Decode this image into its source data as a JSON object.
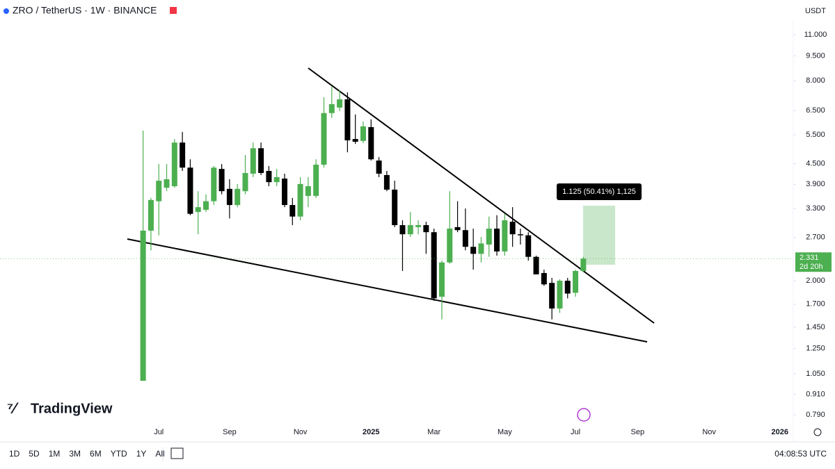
{
  "header": {
    "symbol": "ZRO / TetherUS · 1W · BINANCE",
    "currency": "USDT"
  },
  "brand": "TradingView",
  "chart_data": {
    "type": "candlestick",
    "log_scale": true,
    "up_color": "#4caf50",
    "down_color": "#000000",
    "open": [
      1.0,
      2.83,
      3.47,
      3.81,
      3.85,
      5.21,
      4.38,
      3.22,
      3.27,
      3.47,
      4.34,
      3.78,
      3.38,
      3.72,
      4.2,
      5.01,
      4.28,
      3.96,
      4.06,
      3.38,
      3.12,
      3.6,
      3.6,
      4.47,
      6.39,
      6.64,
      7.03,
      5.34,
      5.27,
      5.8,
      4.6,
      4.16,
      3.76,
      2.94,
      2.76,
      2.9,
      2.94,
      2.8,
      1.79,
      2.27,
      2.9,
      2.84,
      2.53,
      2.41,
      2.57,
      2.87,
      2.45,
      3.01,
      2.76,
      2.74,
      2.36,
      2.11,
      1.97,
      1.65,
      2.0,
      1.84,
      2.14
    ],
    "high": [
      5.66,
      3.55,
      4.49,
      4.49,
      5.34,
      5.61,
      4.64,
      3.72,
      3.64,
      4.43,
      4.49,
      4.04,
      3.91,
      4.78,
      5.21,
      5.21,
      4.43,
      4.34,
      4.2,
      3.55,
      4.1,
      4.1,
      4.64,
      7.13,
      7.67,
      7.49,
      7.38,
      6.33,
      6.03,
      6.12,
      4.71,
      4.28,
      4.0,
      3.04,
      3.22,
      3.04,
      3.01,
      2.87,
      2.3,
      3.72,
      3.47,
      3.3,
      2.87,
      2.71,
      3.12,
      3.15,
      3.18,
      3.33,
      2.87,
      2.8,
      2.38,
      2.16,
      2.04,
      2.02,
      2.04,
      2.16,
      2.36
    ],
    "low": [
      1.0,
      2.47,
      2.74,
      3.72,
      3.81,
      4.28,
      3.15,
      2.76,
      3.22,
      3.38,
      3.64,
      3.08,
      3.33,
      3.64,
      4.1,
      4.16,
      3.85,
      3.85,
      3.33,
      2.94,
      3.04,
      3.33,
      3.55,
      4.38,
      6.18,
      6.48,
      4.87,
      5.16,
      5.19,
      4.6,
      4.1,
      3.72,
      2.9,
      2.14,
      2.71,
      2.76,
      2.41,
      1.74,
      1.53,
      2.25,
      2.8,
      2.47,
      2.16,
      2.27,
      2.36,
      2.38,
      2.38,
      2.53,
      2.57,
      2.3,
      2.09,
      1.93,
      1.53,
      1.6,
      1.77,
      1.79,
      2.12
    ],
    "close": [
      2.83,
      3.5,
      4.0,
      4.04,
      5.21,
      4.38,
      3.18,
      3.33,
      3.47,
      4.38,
      3.72,
      3.38,
      3.78,
      4.22,
      5.01,
      4.22,
      3.96,
      4.1,
      3.38,
      3.12,
      3.91,
      3.85,
      4.47,
      6.39,
      6.8,
      7.03,
      5.29,
      5.24,
      5.83,
      4.64,
      4.2,
      3.76,
      2.94,
      2.76,
      2.94,
      2.94,
      2.8,
      1.77,
      2.27,
      2.87,
      2.84,
      2.53,
      2.41,
      2.59,
      2.87,
      2.45,
      3.04,
      2.76,
      2.74,
      2.36,
      2.09,
      1.95,
      1.65,
      2.0,
      1.83,
      2.14,
      2.331
    ],
    "xlim": [
      -18.2,
      82.7
    ],
    "xticks": [
      {
        "value": 2,
        "label": "Jul"
      },
      {
        "value": 11,
        "label": "Sep"
      },
      {
        "value": 20,
        "label": "Nov"
      },
      {
        "value": 29,
        "label": "2025"
      },
      {
        "value": 37,
        "label": "Mar"
      },
      {
        "value": 46,
        "label": "May"
      },
      {
        "value": 55,
        "label": "Jul"
      },
      {
        "value": 62.9,
        "label": "Sep"
      },
      {
        "value": 72,
        "label": "Nov"
      },
      {
        "value": 81,
        "label": "2026"
      }
    ],
    "ylim": [
      0.742,
      12.11
    ],
    "yticks": [
      {
        "value": 0.79,
        "label": "0.790"
      },
      {
        "value": 0.91,
        "label": "0.910"
      },
      {
        "value": 1.05,
        "label": "1.050"
      },
      {
        "value": 1.25,
        "label": "1.250"
      },
      {
        "value": 1.45,
        "label": "1.450"
      },
      {
        "value": 1.7,
        "label": "1.700"
      },
      {
        "value": 2,
        "label": "2.000"
      },
      {
        "value": 2.7,
        "label": "2.700"
      },
      {
        "value": 3.3,
        "label": "3.300"
      },
      {
        "value": 3.9,
        "label": "3.900"
      },
      {
        "value": 4.5,
        "label": "4.500"
      },
      {
        "value": 5.5,
        "label": "5.500"
      },
      {
        "value": 6.5,
        "label": "6.500"
      },
      {
        "value": 8,
        "label": "8.000"
      },
      {
        "value": 9.5,
        "label": "9.500"
      },
      {
        "value": 11,
        "label": "11.000"
      }
    ],
    "last_price": 2.331,
    "countdown": "2d 20h",
    "measure_label": "1.125 (50.41%) 1,125"
  },
  "footer": {
    "ranges": [
      "1D",
      "5D",
      "1M",
      "3M",
      "6M",
      "YTD",
      "1Y",
      "All"
    ],
    "time": "04:08:53 UTC"
  }
}
